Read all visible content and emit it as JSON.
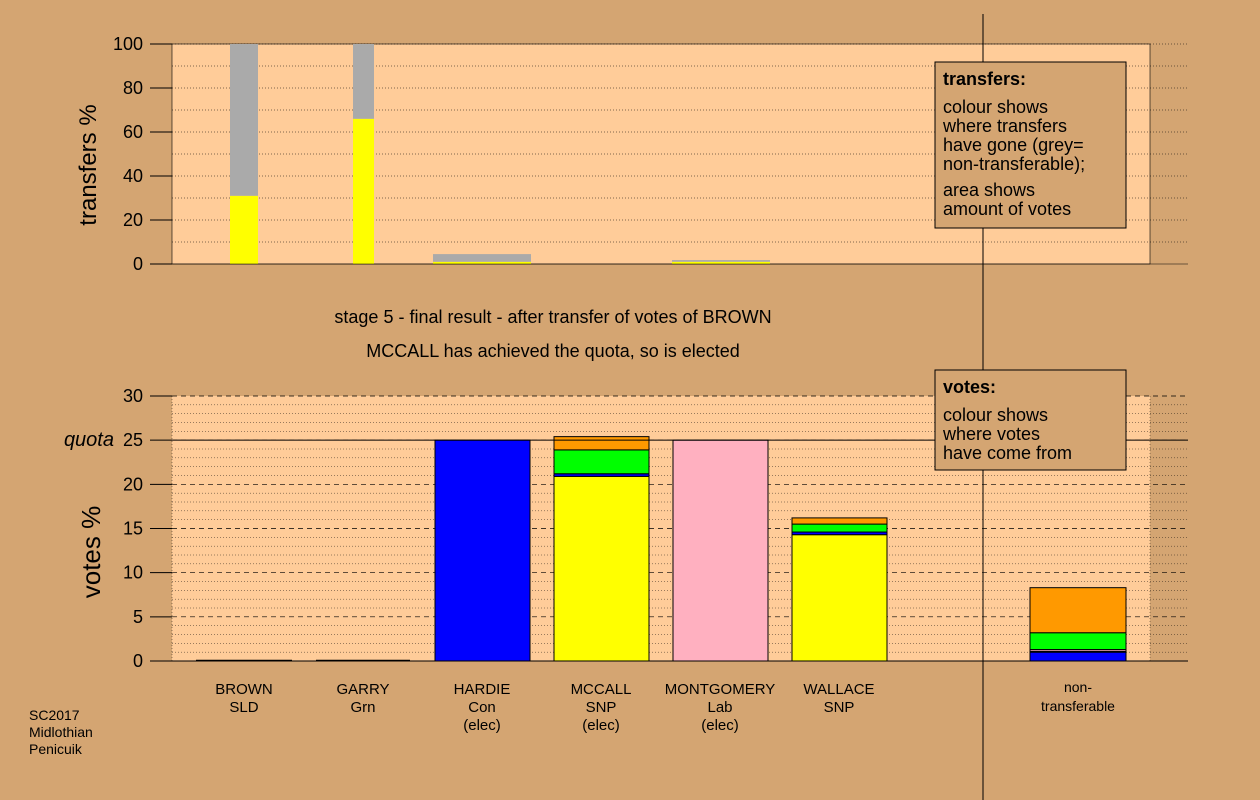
{
  "colors": {
    "background": "#d4a572",
    "plot_area": "#ffcc99",
    "legend_box": "#d4a572",
    "SNP": "#ffff00",
    "non_transferable": "#aaaaaa",
    "Con": "#0000ff",
    "Lab": "#ffb0c0",
    "Grn": "#00ff00",
    "SLD": "#ff9900"
  },
  "titles": {
    "line1": "stage 5 - final result - after transfer of votes of BROWN",
    "line2": "MCCALL has achieved the quota, so is elected"
  },
  "footer": {
    "line1": "SC2017",
    "line2": "Midlothian",
    "line3": "Penicuik"
  },
  "legend_transfers": {
    "title": "transfers:",
    "p1_l1": "colour shows",
    "p1_l2": "where transfers",
    "p1_l3": "have gone (grey=",
    "p1_l4": "non-transferable);",
    "p2_l1": "area shows",
    "p2_l2": "amount of votes"
  },
  "legend_votes": {
    "title": "votes:",
    "l1": "colour shows",
    "l2": "where votes",
    "l3": "have come from"
  },
  "candidates": [
    {
      "name": "BROWN",
      "party": "SLD",
      "status": ""
    },
    {
      "name": "GARRY",
      "party": "Grn",
      "status": ""
    },
    {
      "name": "HARDIE",
      "party": "Con",
      "status": "(elec)"
    },
    {
      "name": "MCCALL",
      "party": "SNP",
      "status": "(elec)"
    },
    {
      "name": "MONTGOMERY",
      "party": "Lab",
      "status": "(elec)"
    },
    {
      "name": "WALLACE",
      "party": "SNP",
      "status": ""
    }
  ],
  "nontransferable_label": {
    "l1": "non-",
    "l2": "transferable"
  },
  "chart_data": [
    {
      "type": "bar",
      "ylabel": "transfers %",
      "ylim": [
        0,
        100
      ],
      "yticks": [
        0,
        20,
        40,
        60,
        80,
        100
      ],
      "grid": true,
      "bars": [
        {
          "candidate": "BROWN",
          "segments": [
            {
              "party": "SNP",
              "value": 31
            },
            {
              "party": "non_transferable",
              "value": 69
            }
          ]
        },
        {
          "candidate": "GARRY",
          "segments": [
            {
              "party": "SNP",
              "value": 66
            },
            {
              "party": "non_transferable",
              "value": 34
            }
          ]
        },
        {
          "candidate": "HARDIE",
          "segments": [
            {
              "party": "SNP",
              "value": 1
            },
            {
              "party": "non_transferable",
              "value": 3.5
            }
          ]
        },
        {
          "candidate": "MONTGOMERY",
          "segments": [
            {
              "party": "SNP",
              "value": 1
            },
            {
              "party": "non_transferable",
              "value": 0.8
            }
          ]
        }
      ]
    },
    {
      "type": "bar",
      "ylabel": "votes %",
      "ylim": [
        0,
        30
      ],
      "yticks": [
        0,
        5,
        10,
        15,
        20,
        25,
        30
      ],
      "quota": 25,
      "quota_label": "quota",
      "grid": true,
      "bars": [
        {
          "candidate": "BROWN",
          "segments": []
        },
        {
          "candidate": "GARRY",
          "segments": []
        },
        {
          "candidate": "HARDIE",
          "segments": [
            {
              "party": "Con",
              "value": 25
            }
          ]
        },
        {
          "candidate": "MCCALL",
          "segments": [
            {
              "party": "SNP",
              "value": 20.9
            },
            {
              "party": "Con",
              "value": 0.3
            },
            {
              "party": "Grn",
              "value": 2.7
            },
            {
              "party": "SLD",
              "value": 1.5
            }
          ]
        },
        {
          "candidate": "MONTGOMERY",
          "segments": [
            {
              "party": "Lab",
              "value": 25
            }
          ]
        },
        {
          "candidate": "WALLACE",
          "segments": [
            {
              "party": "SNP",
              "value": 14.3
            },
            {
              "party": "Con",
              "value": 0.3
            },
            {
              "party": "Grn",
              "value": 0.9
            },
            {
              "party": "SLD",
              "value": 0.7
            }
          ]
        },
        {
          "candidate": "non-transferable",
          "segments": [
            {
              "party": "Con",
              "value": 1
            },
            {
              "party": "SNP",
              "value": 0.1
            },
            {
              "party": "Lab",
              "value": 0.2
            },
            {
              "party": "Grn",
              "value": 1.9
            },
            {
              "party": "SLD",
              "value": 5.1
            }
          ]
        }
      ]
    }
  ]
}
